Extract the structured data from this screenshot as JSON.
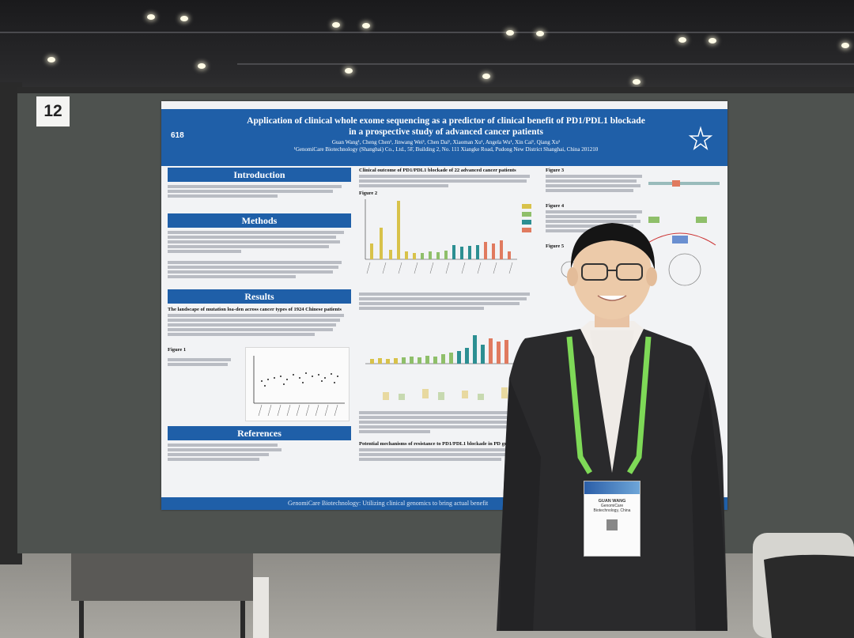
{
  "booth": {
    "number": "12"
  },
  "poster": {
    "id": "618",
    "title_line1": "Application of clinical whole exome sequencing as a predictor of clinical benefit of PD1/PDL1 blockade",
    "title_line2": "in a prospective study of advanced cancer patients",
    "authors": "Guan Wang¹, Cheng Chen¹, Jinwang Wei¹, Chen Dai¹, Xiaoman Xu¹, Angela Wu¹, Xin Cai¹, Qiang Xu¹",
    "affiliation": "¹GenomiCare Biotechnology (Shanghai) Co., Ltd., 5F, Building 2, No. 111 Xiangke Road, Pudong New District Shanghai, China 201210",
    "sections": {
      "introduction": "Introduction",
      "methods": "Methods",
      "results": "Results",
      "references": "References"
    },
    "results_subhead": "The landscape of mutation loa-den across cancer types of 1924 Chinese patients",
    "figure1_label": "Figure 1",
    "center_heading": "Clinical outcome of PD1/PDL1 blockade of 22 advanced cancer patients",
    "figure2_label": "Figure 2",
    "figure3_label": "Figure 3",
    "figure4_label": "Figure 4",
    "figure5_label": "Figure 5",
    "resistance_heading": "Potential mechanisms of resistance to PD1/PDL1 blockade in PD group",
    "footer": "GenomiCare Biotechnology: Utilizing clinical genomics to bring actual benefit"
  },
  "badge": {
    "name": "GUAN WANG",
    "line2": "GenomiCare",
    "line3": "Biotechnology, China"
  },
  "colors": {
    "poster_blue": "#1f5fa8",
    "board": "#4e524f",
    "lanyard": "#7ed957",
    "suit": "#2a2a2c"
  }
}
